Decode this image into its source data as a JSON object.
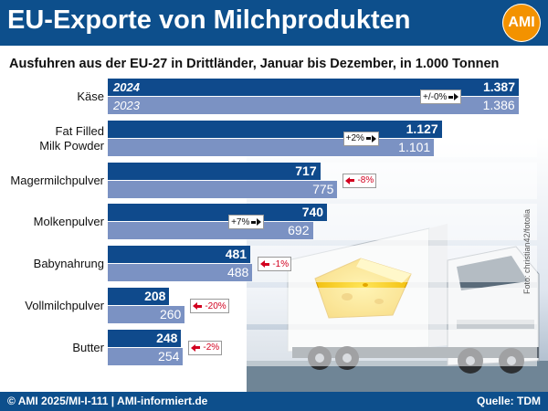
{
  "header": {
    "title": "EU-Exporte von Milchprodukten",
    "logo_text": "AMI"
  },
  "footer": {
    "copyright": "© AMI 2025/MI-I-111 | AMI-informiert.de",
    "source": "Quelle: TDM"
  },
  "photo_credit": "Foto: christian42/fotolia",
  "colors": {
    "header": "#0d4f8c",
    "bar_current": "#0f4a8c",
    "bar_previous": "#7b92c3",
    "logo": "#f39200",
    "negative": "#d2001f"
  },
  "chart_data": {
    "type": "bar",
    "orientation": "horizontal",
    "title": "Ausfuhren aus der EU-27 in Drittländer, Januar bis Dezember, in 1.000 Tonnen",
    "categories": [
      "Käse",
      "Fat Filled\nMilk Powder",
      "Magermilchpulver",
      "Molkenpulver",
      "Babynahrung",
      "Vollmilchpulver",
      "Butter"
    ],
    "series": [
      {
        "name": "2024",
        "values": [
          1387,
          1127,
          717,
          740,
          481,
          208,
          248
        ],
        "labels": [
          "1.387",
          "1.127",
          "717",
          "740",
          "481",
          "208",
          "248"
        ]
      },
      {
        "name": "2023",
        "values": [
          1386,
          1101,
          775,
          692,
          488,
          260,
          254
        ],
        "labels": [
          "1.386",
          "1.101",
          "775",
          "692",
          "488",
          "260",
          "254"
        ]
      }
    ],
    "changes": [
      "+/-0%",
      "+2%",
      "-8%",
      "+7%",
      "-1%",
      "-20%",
      "-2%"
    ],
    "change_direction": [
      "up",
      "up",
      "down",
      "up",
      "down",
      "down",
      "down"
    ],
    "xlim": [
      0,
      1387
    ],
    "grid": false
  }
}
